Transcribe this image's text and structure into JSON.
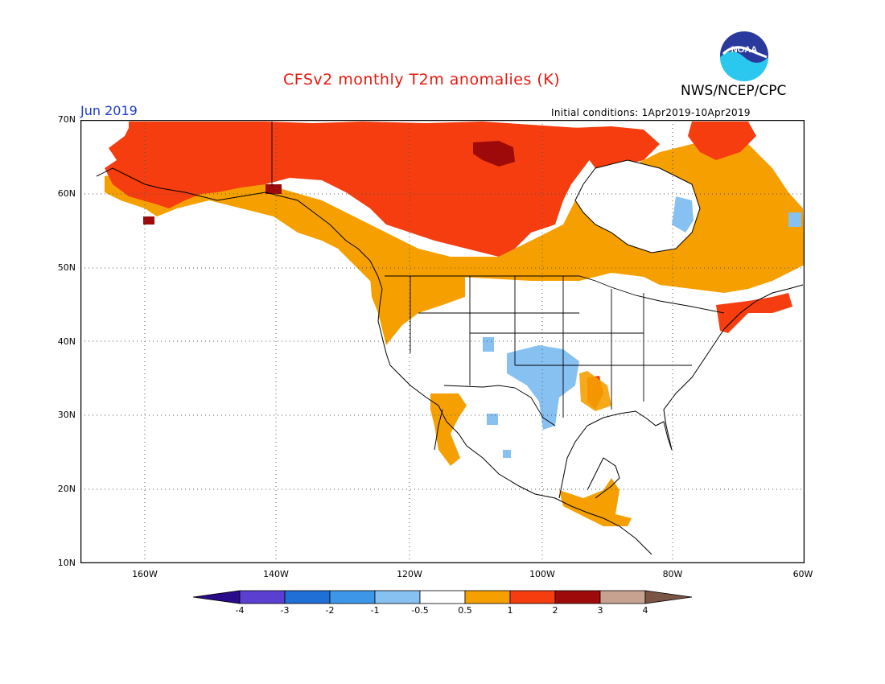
{
  "header": {
    "title": "CFSv2 monthly T2m anomalies (K)",
    "organization": "NWS/NCEP/CPC",
    "logo_text": "NOAA",
    "month": "Jun 2019",
    "initial_conditions": "Initial conditions: 1Apr2019-10Apr2019"
  },
  "map": {
    "projection": "cylindrical",
    "lon_range": [
      -172,
      -60
    ],
    "lat_range": [
      10,
      70
    ],
    "lat_labels": [
      "10N",
      "20N",
      "30N",
      "40N",
      "50N",
      "60N",
      "70N"
    ],
    "lon_labels": [
      "160W",
      "140W",
      "120W",
      "100W",
      "80W",
      "60W"
    ],
    "grid_style": "dotted"
  },
  "colorbar": {
    "labels": [
      "-4",
      "-3",
      "-2",
      "-1",
      "-0.5",
      "0.5",
      "1",
      "2",
      "3",
      "4"
    ],
    "colors": [
      "#2a0b8c",
      "#5a3fd0",
      "#1f6fd6",
      "#3d96e8",
      "#87c1f2",
      "#ffffff",
      "#f5a000",
      "#f53d10",
      "#9e0a0a",
      "#c8a290",
      "#7a5445"
    ]
  },
  "anomaly_regions": [
    {
      "label": "canada-arctic",
      "color": "#f53d10"
    },
    {
      "label": "southern-canada",
      "color": "#f5a000"
    },
    {
      "label": "pacific-northwest",
      "color": "#f5a000"
    },
    {
      "label": "central-us",
      "color": "#87c1f2"
    },
    {
      "label": "hudson-bay",
      "color": "#87c1f2"
    },
    {
      "label": "northern-canada-max",
      "color": "#9e0a0a"
    },
    {
      "label": "mexico-baja",
      "color": "#f5a000"
    },
    {
      "label": "central-america",
      "color": "#f5a000"
    },
    {
      "label": "new-england",
      "color": "#f53d10"
    },
    {
      "label": "gulf-coast",
      "color": "#f53d10"
    }
  ]
}
